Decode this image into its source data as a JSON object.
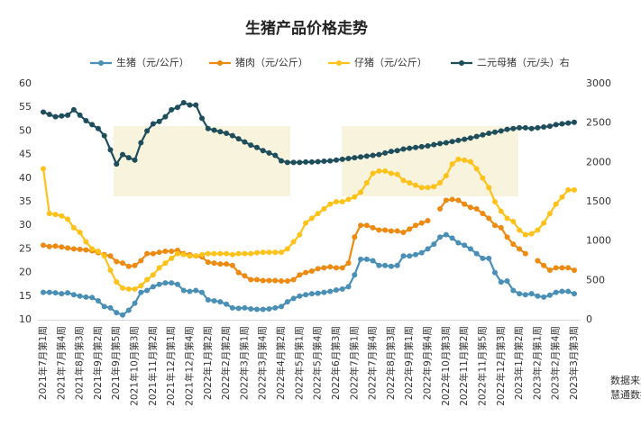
{
  "chart_data": {
    "type": "line",
    "title": "生猪产品价格走势",
    "categories": [
      "2021年7月第1周",
      null,
      null,
      "2021年7月第4周",
      null,
      null,
      "2021年8月第3周",
      null,
      null,
      "2021年9月第2周",
      null,
      null,
      "2021年9月第5周",
      null,
      null,
      "2021年10月第3周",
      null,
      null,
      "2021年11月第2周",
      null,
      null,
      "2021年12月第1周",
      null,
      null,
      "2021年12月第4周",
      null,
      null,
      "2022年1月第2周",
      null,
      null,
      "2022年2月第2周",
      null,
      null,
      "2022年3月第1周",
      null,
      null,
      "2022年3月第4周",
      null,
      null,
      "2022年4月第2周",
      null,
      null,
      "2022年5月第1周",
      null,
      null,
      "2022年5月第4周",
      null,
      null,
      "2022年6月第3周",
      null,
      null,
      "2022年7月第1周",
      null,
      null,
      "2022年7月第4周",
      null,
      null,
      "2022年8月第3周",
      null,
      null,
      "2022年9月第1周",
      null,
      null,
      "2022年9月第4周",
      null,
      null,
      "2022年10月第3周",
      null,
      null,
      "2022年11月第2周",
      null,
      null,
      "2022年11月第5周",
      null,
      null,
      "2022年12月第3周",
      null,
      null,
      "2023年1月第2周",
      null,
      null,
      "2023年2月第1周",
      null,
      null,
      "2023年2月第4周",
      null,
      null,
      "2023年3月第3周"
    ],
    "ylim": [
      10,
      60
    ],
    "yticks": [
      10,
      15,
      20,
      25,
      30,
      35,
      40,
      45,
      50,
      55,
      60
    ],
    "y2lim": [
      0,
      3000
    ],
    "y2ticks": [
      0,
      500,
      1000,
      1500,
      2000,
      2500,
      3000
    ],
    "series": [
      {
        "name": "生猪（元/公斤）",
        "color": "#4a8fb5",
        "values": [
          15.8,
          15.8,
          15.7,
          15.5,
          15.7,
          15.3,
          15.0,
          14.8,
          14.7,
          14.0,
          12.8,
          12.5,
          11.5,
          11.0,
          12.0,
          13.5,
          15.8,
          16.2,
          17.0,
          17.5,
          17.8,
          17.8,
          17.5,
          16.2,
          16.0,
          16.2,
          15.8,
          14.2,
          14.0,
          13.8,
          13.3,
          12.5,
          12.4,
          12.5,
          12.3,
          12.2,
          12.2,
          12.3,
          12.5,
          12.8,
          13.8,
          14.5,
          15.0,
          15.3,
          15.5,
          15.6,
          15.8,
          16.0,
          16.3,
          16.5,
          17.0,
          19.5,
          22.8,
          22.8,
          22.5,
          21.5,
          21.5,
          21.3,
          21.5,
          23.5,
          23.5,
          23.8,
          24.2,
          25.0,
          26.0,
          27.5,
          28.0,
          27.3,
          26.3,
          25.8,
          25.0,
          24.0,
          23.0,
          23.0,
          20.0,
          18.0,
          18.2,
          16.2,
          15.5,
          15.3,
          15.5,
          15.0,
          14.8,
          15.2,
          15.8,
          16.0,
          16.0,
          15.5
        ]
      },
      {
        "name": "猪肉（元/公斤）",
        "color": "#ed8a12",
        "values": [
          25.8,
          25.5,
          25.6,
          25.4,
          25.2,
          25.0,
          24.9,
          24.8,
          24.6,
          24.2,
          23.8,
          23.5,
          22.3,
          22.0,
          21.3,
          21.5,
          22.5,
          24.0,
          24.0,
          24.3,
          24.5,
          24.5,
          24.7,
          24.0,
          23.8,
          23.5,
          23.3,
          22.2,
          22.0,
          21.8,
          21.8,
          21.5,
          20.0,
          19.3,
          18.5,
          18.5,
          18.3,
          18.3,
          18.3,
          18.2,
          18.2,
          18.5,
          19.5,
          20.0,
          20.3,
          20.8,
          21.0,
          21.2,
          21.0,
          21.0,
          22.0,
          27.5,
          30.0,
          30.0,
          29.5,
          29.0,
          29.0,
          28.8,
          28.8,
          28.5,
          29.2,
          30.0,
          30.5,
          31.0,
          null,
          33.5,
          35.3,
          35.5,
          35.3,
          34.5,
          33.8,
          33.5,
          32.5,
          31.5,
          30.0,
          29.5,
          27.5,
          26.0,
          25.0,
          24.0,
          null,
          22.5,
          21.5,
          20.5,
          21.0,
          21.0,
          21.0,
          20.5
        ]
      },
      {
        "name": "仔猪（元/公斤）",
        "color": "#ffc21a",
        "values": [
          42.0,
          32.5,
          32.3,
          32.0,
          31.3,
          29.5,
          28.5,
          26.5,
          25.0,
          24.5,
          23.5,
          20.5,
          18.0,
          16.7,
          16.5,
          16.5,
          17.2,
          18.5,
          19.5,
          21.0,
          22.0,
          23.0,
          24.0,
          23.8,
          23.5,
          23.5,
          23.8,
          24.0,
          24.0,
          24.0,
          24.0,
          23.8,
          24.0,
          24.0,
          24.0,
          24.2,
          24.3,
          24.3,
          24.3,
          24.3,
          25.0,
          26.5,
          28.0,
          30.5,
          31.5,
          32.5,
          33.5,
          34.5,
          35.0,
          35.0,
          35.5,
          36.0,
          37.0,
          39.0,
          41.0,
          41.5,
          41.5,
          41.0,
          40.8,
          39.5,
          39.0,
          38.5,
          38.0,
          38.0,
          38.2,
          39.0,
          40.5,
          43.0,
          44.0,
          43.8,
          43.5,
          42.0,
          40.0,
          38.0,
          35.0,
          33.0,
          31.5,
          30.8,
          29.0,
          28.0,
          28.2,
          29.0,
          30.5,
          32.5,
          34.5,
          36.0,
          37.5,
          37.5
        ]
      },
      {
        "name": "二元母猪（元/头）右",
        "color": "#1e4d5c",
        "axis": "y2",
        "values": [
          2640,
          2610,
          2580,
          2590,
          2600,
          2670,
          2600,
          2530,
          2480,
          2430,
          2340,
          2160,
          1980,
          2100,
          2060,
          2030,
          2250,
          2400,
          2490,
          2520,
          2580,
          2670,
          2700,
          2760,
          2730,
          2730,
          2560,
          2430,
          2410,
          2390,
          2370,
          2340,
          2300,
          2260,
          2220,
          2190,
          2150,
          2120,
          2090,
          2020,
          2000,
          2000,
          2000,
          2005,
          2005,
          2010,
          2015,
          2020,
          2030,
          2040,
          2050,
          2060,
          2070,
          2080,
          2090,
          2100,
          2120,
          2140,
          2150,
          2170,
          2180,
          2190,
          2200,
          2210,
          2225,
          2240,
          2250,
          2265,
          2280,
          2295,
          2310,
          2330,
          2350,
          2370,
          2385,
          2400,
          2420,
          2430,
          2440,
          2440,
          2430,
          2440,
          2450,
          2460,
          2480,
          2490,
          2500,
          2510
        ]
      }
    ],
    "source": [
      "数据来源:",
      "慧通数据"
    ]
  }
}
